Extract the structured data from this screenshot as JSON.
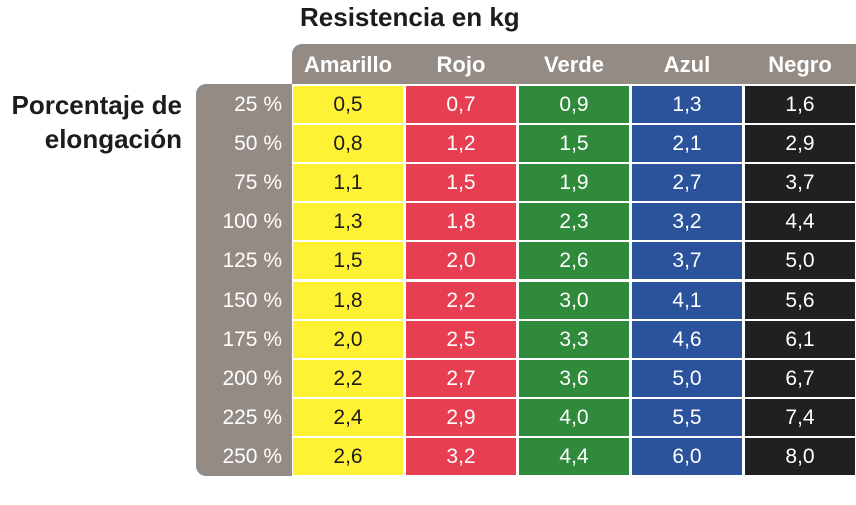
{
  "title": "Resistencia en kg",
  "row_axis_label": "Porcentaje de elongación",
  "colors": {
    "Amarillo": "#fff234",
    "Rojo": "#e83e52",
    "Verde": "#2f8a3c",
    "Azul": "#2b539c",
    "Negro": "#202020",
    "header_bg": "#958b85"
  },
  "chart_data": {
    "type": "table",
    "title": "Resistencia en kg",
    "row_label": "Porcentaje de elongación",
    "columns": [
      "Amarillo",
      "Rojo",
      "Verde",
      "Azul",
      "Negro"
    ],
    "rows": [
      "25 %",
      "50 %",
      "75 %",
      "100 %",
      "125 %",
      "150 %",
      "175 %",
      "200 %",
      "225 %",
      "250 %"
    ],
    "values": [
      [
        "0,5",
        "0,7",
        "0,9",
        "1,3",
        "1,6"
      ],
      [
        "0,8",
        "1,2",
        "1,5",
        "2,1",
        "2,9"
      ],
      [
        "1,1",
        "1,5",
        "1,9",
        "2,7",
        "3,7"
      ],
      [
        "1,3",
        "1,8",
        "2,3",
        "3,2",
        "4,4"
      ],
      [
        "1,5",
        "2,0",
        "2,6",
        "3,7",
        "5,0"
      ],
      [
        "1,8",
        "2,2",
        "3,0",
        "4,1",
        "5,6"
      ],
      [
        "2,0",
        "2,5",
        "3,3",
        "4,6",
        "6,1"
      ],
      [
        "2,2",
        "2,7",
        "3,6",
        "5,0",
        "6,7"
      ],
      [
        "2,4",
        "2,9",
        "4,0",
        "5,5",
        "7,4"
      ],
      [
        "2,6",
        "3,2",
        "4,4",
        "6,0",
        "8,0"
      ]
    ]
  }
}
